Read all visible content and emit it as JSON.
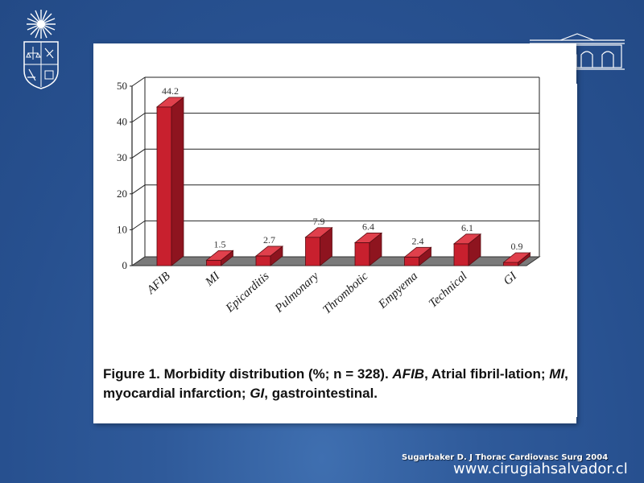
{
  "chart_data": {
    "type": "bar",
    "categories": [
      "AFIB",
      "MI",
      "Epicarditis",
      "Pulmonary",
      "Thrombotic",
      "Empyema",
      "Technical",
      "GI"
    ],
    "values": [
      44.2,
      1.5,
      2.7,
      7.9,
      6.4,
      2.4,
      6.1,
      0.9
    ],
    "data_labels": [
      "44.2",
      "1.5",
      "2.7",
      "7.9",
      "6.4",
      "2.4",
      "6.1",
      "0.9"
    ],
    "yticks": [
      "0",
      "10",
      "20",
      "30",
      "40",
      "50"
    ],
    "ylim": [
      0,
      50
    ],
    "grid": true,
    "style": "3d",
    "bar_color": "#c8202e"
  },
  "caption": {
    "fig_label": "Figure 1.",
    "text_a": " Morbidity distribution (%; n = 328). ",
    "afib": "AFIB",
    "text_b": ", Atrial fibril-lation; ",
    "mi": "MI",
    "text_c": ", myocardial infarction; ",
    "gi": "GI",
    "text_d": ", gastrointestinal."
  },
  "citation": "Sugarbaker D. J Thorac Cardiovasc Surg 2004",
  "website": "www.cirugiahsalvador.cl"
}
